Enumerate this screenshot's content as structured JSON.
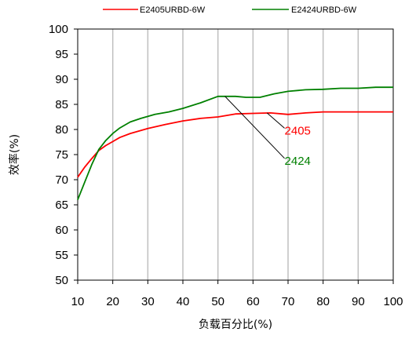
{
  "chart_data": {
    "type": "line",
    "xlabel": "负载百分比(%)",
    "ylabel": "效率(%)",
    "xlim": [
      10,
      100
    ],
    "ylim": [
      50,
      100
    ],
    "x_ticks": [
      10,
      20,
      30,
      40,
      50,
      60,
      70,
      80,
      90,
      100
    ],
    "y_ticks": [
      50,
      55,
      60,
      65,
      70,
      75,
      80,
      85,
      90,
      95,
      100
    ],
    "grid": "vertical",
    "legend_position": "top",
    "series": [
      {
        "name": "E2405URBD-6W",
        "color": "#ff0000",
        "x": [
          10,
          12,
          14,
          16,
          18,
          20,
          22,
          25,
          30,
          35,
          40,
          45,
          50,
          55,
          60,
          65,
          70,
          75,
          80,
          85,
          90,
          95,
          100
        ],
        "y": [
          70.5,
          72.5,
          74.2,
          75.8,
          76.8,
          77.6,
          78.4,
          79.2,
          80.2,
          81,
          81.7,
          82.2,
          82.5,
          83.1,
          83.2,
          83.3,
          83,
          83.3,
          83.5,
          83.5,
          83.5,
          83.5,
          83.5
        ]
      },
      {
        "name": "E2424URBD-6W",
        "color": "#008000",
        "x": [
          10,
          12,
          14,
          16,
          18,
          20,
          22,
          25,
          28,
          32,
          36,
          40,
          45,
          50,
          55,
          58,
          62,
          66,
          70,
          75,
          80,
          85,
          90,
          95,
          100
        ],
        "y": [
          66,
          69.5,
          73,
          76,
          77.8,
          79.2,
          80.3,
          81.5,
          82.2,
          83,
          83.5,
          84.2,
          85.3,
          86.6,
          86.6,
          86.4,
          86.4,
          87.1,
          87.6,
          87.9,
          88,
          88.2,
          88.2,
          88.4,
          88.4
        ]
      }
    ],
    "annotations": [
      {
        "text": "2405",
        "color": "#ff0000",
        "points_to": {
          "x": 64,
          "y": 83.3
        },
        "label_at": {
          "x": 69,
          "y": 79
        }
      },
      {
        "text": "2424",
        "color": "#008000",
        "points_to": {
          "x": 52,
          "y": 86.6
        },
        "label_at": {
          "x": 69,
          "y": 73
        }
      }
    ]
  }
}
